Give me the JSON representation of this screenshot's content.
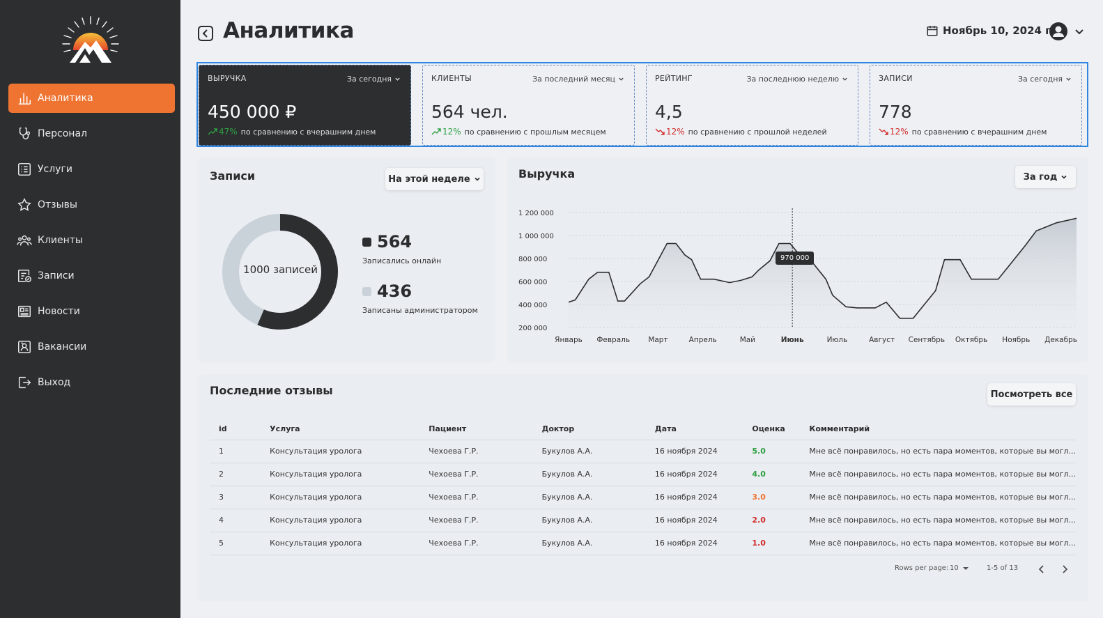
{
  "sidebar": {
    "items": [
      {
        "label": "Аналитика",
        "icon": "bar-chart-icon",
        "active": true
      },
      {
        "label": "Персонал",
        "icon": "stethoscope-icon"
      },
      {
        "label": "Услуги",
        "icon": "list-icon"
      },
      {
        "label": "Отзывы",
        "icon": "star-icon"
      },
      {
        "label": "Клиенты",
        "icon": "users-icon"
      },
      {
        "label": "Записи",
        "icon": "calendar-edit-icon"
      },
      {
        "label": "Новости",
        "icon": "newspaper-icon"
      },
      {
        "label": "Вакансии",
        "icon": "id-card-icon"
      },
      {
        "label": "Выход",
        "icon": "logout-icon"
      }
    ]
  },
  "header": {
    "title": "Аналитика",
    "date": "Ноябрь 10, 2024 г."
  },
  "stats": [
    {
      "label": "ВЫРУЧКА",
      "period": "За сегодня",
      "value": "450 000 ₽",
      "pct": "47%",
      "trend": "up",
      "compare": "по сравнению с вчерашним днем"
    },
    {
      "label": "КЛИЕНТЫ",
      "period": "За последний месяц",
      "value": "564 чел.",
      "pct": "12%",
      "trend": "up",
      "compare": "по сравнению с прошлым месяцем"
    },
    {
      "label": "РЕЙТИНГ",
      "period": "За последнюю неделю",
      "value": "4,5",
      "pct": "12%",
      "trend": "down",
      "compare": "по сравнению с прошлой неделей"
    },
    {
      "label": "ЗАПИСИ",
      "period": "За сегодня",
      "value": "778",
      "pct": "12%",
      "trend": "down",
      "compare": "по сравнению с вчерашним днем"
    }
  ],
  "bookings": {
    "title": "Записи",
    "period": "На этой неделе",
    "center_label": "1000 записей",
    "online": {
      "value": "564",
      "label": "Записались онлайн"
    },
    "admin": {
      "value": "436",
      "label": "Записаны администратором"
    }
  },
  "revenue": {
    "title": "Выручка",
    "period": "За год",
    "tooltip": "970 000"
  },
  "chart_data": [
    {
      "type": "pie",
      "title": "Записи",
      "categories": [
        "Записались онлайн",
        "Записаны администратором"
      ],
      "values": [
        564,
        436
      ],
      "colors": [
        "#2d2e30",
        "#c9d1d9"
      ]
    },
    {
      "type": "area",
      "title": "Выручка",
      "categories": [
        "Январь",
        "Февраль",
        "Март",
        "Апрель",
        "Май",
        "Июнь",
        "Июль",
        "Август",
        "Сентябрь",
        "Октябрь",
        "Ноябрь",
        "Декабрь"
      ],
      "highlight": "Июнь",
      "x": [
        0,
        0.15,
        0.45,
        0.65,
        0.9,
        1.1,
        1.25,
        1.6,
        1.8,
        2.2,
        2.4,
        2.6,
        2.75,
        2.95,
        3.05,
        3.25,
        3.6,
        3.85,
        4.1,
        4.25,
        4.5,
        4.7,
        4.95,
        5.1,
        5.15,
        5.4,
        5.75,
        5.9,
        6.2,
        6.45,
        6.85,
        7.1,
        7.4,
        7.7,
        7.95,
        8.2,
        8.4,
        8.75,
        9.0,
        9.4,
        9.6,
        10.2,
        10.45,
        10.9,
        11.35
      ],
      "values": [
        420000,
        440000,
        620000,
        680000,
        680000,
        430000,
        430000,
        580000,
        640000,
        930000,
        930000,
        830000,
        790000,
        620000,
        620000,
        620000,
        590000,
        610000,
        640000,
        700000,
        780000,
        930000,
        930000,
        860000,
        850000,
        790000,
        620000,
        480000,
        380000,
        370000,
        370000,
        420000,
        280000,
        280000,
        400000,
        520000,
        790000,
        790000,
        620000,
        620000,
        620000,
        910000,
        1040000,
        1110000,
        1150000
      ],
      "xlim": [
        0,
        11.35
      ],
      "yticks": [
        "1 200 000",
        "1 000 000",
        "800 000",
        "600 000",
        "400 000",
        "200 000"
      ],
      "ytick_values": [
        1200000,
        1000000,
        800000,
        600000,
        400000,
        200000
      ],
      "ylim": [
        200000,
        1200000
      ],
      "grid": true
    }
  ],
  "reviews": {
    "title": "Последние отзывы",
    "view_all": "Посмотреть все",
    "columns": [
      "id",
      "Услуга",
      "Пациент",
      "Доктор",
      "Дата",
      "Оценка",
      "Комментарий"
    ],
    "rows": [
      {
        "id": "1",
        "service": "Консультация уролога",
        "patient": "Чехоева Г.Р.",
        "doctor": "Букулов А.А.",
        "date": "16 ноября 2024",
        "rating": "5.0",
        "rating_color": "#2ea043",
        "comment": "Мне всё понравилось, но есть пара моментов, которые вы могл..."
      },
      {
        "id": "2",
        "service": "Консультация уролога",
        "patient": "Чехоева Г.Р.",
        "doctor": "Букулов А.А.",
        "date": "16 ноября 2024",
        "rating": "4.0",
        "rating_color": "#2ea043",
        "comment": "Мне всё понравилось, но есть пара моментов, которые вы могл..."
      },
      {
        "id": "3",
        "service": "Консультация уролога",
        "patient": "Чехоева Г.Р.",
        "doctor": "Букулов А.А.",
        "date": "16 ноября 2024",
        "rating": "3.0",
        "rating_color": "#ef7432",
        "comment": "Мне всё понравилось, но есть пара моментов, которые вы могл..."
      },
      {
        "id": "4",
        "service": "Консультация уролога",
        "patient": "Чехоева Г.Р.",
        "doctor": "Букулов А.А.",
        "date": "16 ноября 2024",
        "rating": "2.0",
        "rating_color": "#d12c2c",
        "comment": "Мне всё понравилось, но есть пара моментов, которые вы могл..."
      },
      {
        "id": "5",
        "service": "Консультация уролога",
        "patient": "Чехоева Г.Р.",
        "doctor": "Букулов А.А.",
        "date": "16 ноября 2024",
        "rating": "1.0",
        "rating_color": "#d12c2c",
        "comment": "Мне всё понравилось, но есть пара моментов, которые вы могл..."
      }
    ],
    "pagination": {
      "rows_label": "Rows per page:",
      "rows_value": "10",
      "range": "1-5 of 13"
    }
  },
  "colors": {
    "accent": "#ef7432",
    "dark": "#2d2e30",
    "frame": "#2f86e0",
    "up": "#2ea043",
    "down": "#d12c2c"
  }
}
